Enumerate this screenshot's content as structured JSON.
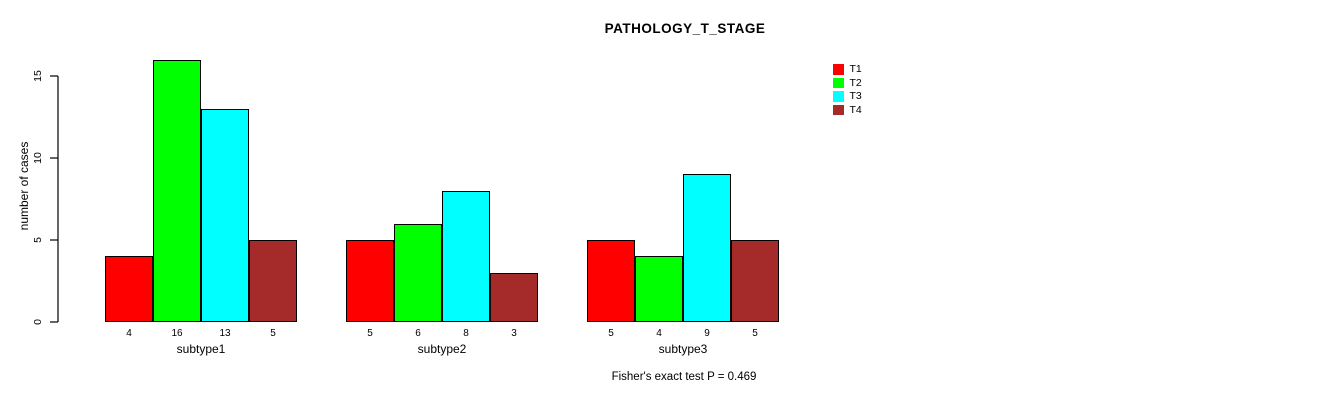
{
  "page": {
    "title": "PATHOLOGY_T_STAGE",
    "footnote": "Fisher's exact test P = 0.469"
  },
  "chart_data": {
    "type": "bar",
    "title": "PATHOLOGY_T_STAGE",
    "categories": [
      "subtype1",
      "subtype2",
      "subtype3"
    ],
    "series": [
      {
        "name": "T1",
        "color": "#ff0000",
        "values": [
          4,
          5,
          5
        ]
      },
      {
        "name": "T2",
        "color": "#00ff00",
        "values": [
          16,
          6,
          4
        ]
      },
      {
        "name": "T3",
        "color": "#00ffff",
        "values": [
          13,
          8,
          9
        ]
      },
      {
        "name": "T4",
        "color": "#a52a2a",
        "values": [
          5,
          3,
          5
        ]
      }
    ],
    "ylabel": "number of cases",
    "xlabel": "",
    "yticks": [
      0,
      5,
      10,
      15
    ],
    "ylim": [
      0,
      16.5
    ],
    "grid": false,
    "legend_position": "top-right",
    "bar_value_labels": true,
    "annotation": "Fisher's exact test P = 0.469"
  }
}
